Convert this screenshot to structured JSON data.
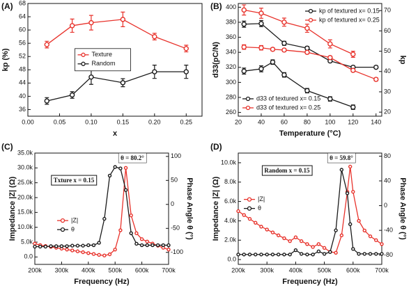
{
  "chart_data": [
    {
      "type": "line",
      "label": "(A)",
      "x_label": "x",
      "y_label": "kp (%)",
      "xlim": [
        0,
        0.275
      ],
      "xticks": [
        {
          "value": 0,
          "label": "0.00"
        },
        {
          "value": 0.05,
          "label": "0.05"
        },
        {
          "value": 0.1,
          "label": "0.10"
        },
        {
          "value": 0.15,
          "label": "0.15"
        },
        {
          "value": 0.2,
          "label": "0.20"
        },
        {
          "value": 0.25,
          "label": "0.25"
        }
      ],
      "ylim": [
        34,
        68
      ],
      "yticks": [
        36,
        40,
        44,
        48,
        52,
        56,
        60,
        64,
        68
      ],
      "legend": "center",
      "series": [
        {
          "name": "Texture",
          "color": "#e8322b",
          "x": [
            0.03,
            0.07,
            0.1,
            0.15,
            0.2,
            0.25
          ],
          "values": [
            55.6,
            61.3,
            62.2,
            63.2,
            58.0,
            54.4
          ],
          "errors": [
            1.0,
            2.0,
            2.2,
            2.2,
            1.0,
            1.0
          ]
        },
        {
          "name": "Random",
          "color": "#1a1a1a",
          "x": [
            0.03,
            0.07,
            0.1,
            0.15,
            0.2,
            0.25
          ],
          "values": [
            38.6,
            40.4,
            45.8,
            44.1,
            47.4,
            47.4
          ],
          "errors": [
            1.0,
            1.0,
            2.2,
            1.2,
            2.0,
            2.0
          ]
        }
      ]
    },
    {
      "type": "line",
      "label": "(B)",
      "x_label": "Temperature (°C)",
      "y_label": "d33(pC/N)",
      "y2_label": "kp",
      "xlim": [
        20,
        145
      ],
      "xticks": [
        20,
        40,
        60,
        80,
        100,
        120,
        140
      ],
      "ylim": [
        255,
        405
      ],
      "yticks": [
        260,
        280,
        300,
        320,
        340,
        360,
        380,
        400
      ],
      "y2lim": [
        18,
        73.5
      ],
      "y2ticks": [
        20,
        30,
        40,
        50,
        60,
        70
      ],
      "series": [
        {
          "name": "kp of textured x= 0.15",
          "color": "#1a1a1a",
          "axis": "y2",
          "legend": "upper right",
          "x": [
            25,
            40,
            60,
            80,
            100,
            120,
            140
          ],
          "values": [
            63.3,
            63.6,
            53.9,
            51.5,
            45.2,
            42.1,
            42.1
          ],
          "errors": [
            1.5,
            1.5,
            1.0,
            0.8,
            0.6,
            0.6,
            0.6
          ]
        },
        {
          "name": "kp of textured x= 0.25",
          "color": "#e8322b",
          "axis": "y2",
          "legend": "upper right",
          "x": [
            25,
            40,
            60,
            80,
            100,
            120
          ],
          "values": [
            70.3,
            68.7,
            64.3,
            61.3,
            53.6,
            48.5
          ],
          "errors": [
            2.5,
            2.5,
            2.0,
            2.0,
            2.0,
            1.5
          ]
        },
        {
          "name": "d33 of textured x= 0.15",
          "color": "#1a1a1a",
          "legend": "lower left",
          "x": [
            25,
            40,
            50,
            60,
            80,
            100,
            120
          ],
          "values": [
            315,
            318,
            327,
            310,
            289,
            278,
            267
          ],
          "errors": [
            4,
            4,
            3,
            3,
            3,
            3,
            3
          ]
        },
        {
          "name": "d33 of textured x= 0.25",
          "color": "#e8322b",
          "legend": "lower left",
          "x": [
            25,
            40,
            50,
            60,
            80,
            100,
            120,
            140
          ],
          "values": [
            347,
            346,
            344,
            343,
            340,
            333,
            316,
            304
          ],
          "errors": [
            3,
            3,
            2,
            2,
            2,
            2,
            2,
            2
          ]
        }
      ]
    },
    {
      "type": "line",
      "label": "(C)",
      "x_label": "Frequency (Hz)",
      "y_label": "Impedance |Z| (Ω)",
      "y2_label": "Phase Angle θ (°)",
      "xlim": [
        200000,
        700000
      ],
      "xticks": [
        {
          "value": 200000,
          "label": "200k"
        },
        {
          "value": 300000,
          "label": "300k"
        },
        {
          "value": 400000,
          "label": "400k"
        },
        {
          "value": 500000,
          "label": "500k"
        },
        {
          "value": 600000,
          "label": "600k"
        },
        {
          "value": 700000,
          "label": "700k"
        }
      ],
      "ylim": [
        -2500,
        35000
      ],
      "yticks": [
        {
          "value": 0,
          "label": "0.0"
        },
        {
          "value": 5000,
          "label": "5.0k"
        },
        {
          "value": 10000,
          "label": "10.0k"
        },
        {
          "value": 15000,
          "label": "15.0k"
        },
        {
          "value": 20000,
          "label": "20.0k"
        },
        {
          "value": 25000,
          "label": "25.0k"
        },
        {
          "value": 30000,
          "label": "30.0k"
        },
        {
          "value": 35000,
          "label": "35.0k"
        }
      ],
      "y2lim": [
        -125,
        107
      ],
      "y2ticks": [
        -100,
        -50,
        0,
        50,
        100
      ],
      "legend": "center left",
      "annotations": [
        "θ = 80.2°",
        "Txture x = 0.15"
      ],
      "series": [
        {
          "name": "|Z|",
          "color": "#e8322b",
          "x": [
            200000,
            220000,
            240000,
            260000,
            280000,
            300000,
            320000,
            340000,
            360000,
            380000,
            400000,
            420000,
            440000,
            460000,
            480000,
            500000,
            520000,
            540000,
            560000,
            580000,
            600000,
            620000,
            640000,
            660000,
            680000,
            700000
          ],
          "values": [
            4500,
            4000,
            3700,
            3400,
            3100,
            2800,
            2500,
            2200,
            1900,
            1600,
            1300,
            1000,
            700,
            500,
            900,
            2500,
            9000,
            30000,
            14000,
            8000,
            6000,
            5200,
            4500,
            3800,
            3100,
            2500
          ]
        },
        {
          "name": "θ",
          "color": "#1a1a1a",
          "axis": "y2",
          "x": [
            200000,
            220000,
            240000,
            260000,
            280000,
            300000,
            320000,
            340000,
            360000,
            380000,
            400000,
            420000,
            440000,
            460000,
            480000,
            500000,
            520000,
            540000,
            560000,
            580000,
            600000,
            620000,
            640000,
            660000,
            680000,
            700000
          ],
          "values": [
            -88,
            -88,
            -88,
            -87,
            -87,
            -87,
            -87,
            -86,
            -86,
            -86,
            -85,
            -85,
            -80,
            -30,
            60,
            78,
            75,
            30,
            -60,
            -82,
            -85,
            -85,
            -85,
            -85,
            -85,
            -85
          ]
        }
      ]
    },
    {
      "type": "line",
      "label": "(D)",
      "x_label": "Frequency (Hz)",
      "y_label": "Impedance |Z| (Ω)",
      "y2_label": "Phase Angle θ (°)",
      "xlim": [
        200000,
        700000
      ],
      "xticks": [
        {
          "value": 200000,
          "label": "200k"
        },
        {
          "value": 300000,
          "label": "300k"
        },
        {
          "value": 400000,
          "label": "400k"
        },
        {
          "value": 500000,
          "label": "500k"
        },
        {
          "value": 600000,
          "label": "600k"
        },
        {
          "value": 700000,
          "label": "700k"
        }
      ],
      "ylim": [
        -500,
        11000
      ],
      "yticks": [
        {
          "value": 0,
          "label": "0.0"
        },
        {
          "value": 2000,
          "label": "2.0k"
        },
        {
          "value": 4000,
          "label": "4.0k"
        },
        {
          "value": 6000,
          "label": "6.0k"
        },
        {
          "value": 8000,
          "label": "8.0k"
        },
        {
          "value": 10000,
          "label": "10.0k"
        }
      ],
      "y2lim": [
        -95,
        85
      ],
      "y2ticks": [
        -80,
        -40,
        0,
        40,
        80
      ],
      "legend": "upper left",
      "annotations": [
        "θ = 59.8°",
        "Random x = 0.15"
      ],
      "series": [
        {
          "name": "|Z|",
          "color": "#e8322b",
          "x": [
            200000,
            220000,
            240000,
            260000,
            280000,
            300000,
            320000,
            340000,
            360000,
            380000,
            400000,
            420000,
            440000,
            460000,
            480000,
            500000,
            520000,
            540000,
            560000,
            580000,
            590000,
            600000,
            620000,
            640000,
            660000,
            680000,
            700000
          ],
          "values": [
            5000,
            4600,
            4200,
            3800,
            3400,
            3100,
            2800,
            2500,
            2200,
            1900,
            2300,
            1900,
            1600,
            1300,
            1600,
            1200,
            800,
            700,
            2500,
            7000,
            9600,
            7000,
            4000,
            3000,
            2400,
            2000,
            1600
          ]
        },
        {
          "name": "θ",
          "color": "#1a1a1a",
          "axis": "y2",
          "x": [
            200000,
            220000,
            240000,
            260000,
            280000,
            300000,
            320000,
            340000,
            360000,
            380000,
            400000,
            420000,
            440000,
            460000,
            480000,
            500000,
            520000,
            540000,
            560000,
            580000,
            590000,
            600000,
            620000,
            640000,
            660000,
            680000,
            700000
          ],
          "values": [
            -79,
            -79,
            -79,
            -79,
            -79,
            -79,
            -79,
            -79,
            -79,
            -79,
            -72,
            -78,
            -79,
            -79,
            -74,
            -78,
            -75,
            -40,
            58,
            20,
            -30,
            -70,
            -78,
            -78,
            -78,
            -78,
            -78
          ]
        }
      ]
    }
  ]
}
